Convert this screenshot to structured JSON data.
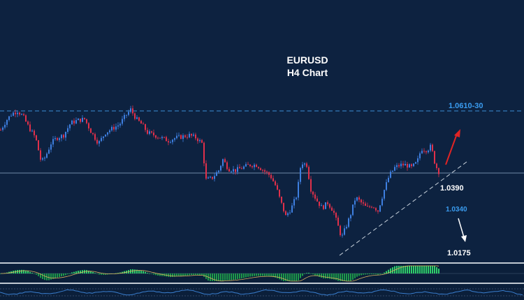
{
  "chart_data": {
    "type": "candlestick",
    "title": "EURUSD",
    "subtitle": "H4 Chart",
    "annotations": {
      "resistance": {
        "label": "1.0610-30",
        "value": 1.062
      },
      "current": {
        "label": "1.0390",
        "value": 1.039
      },
      "alt_trigger": {
        "label": "1.0340",
        "value": 1.034
      },
      "downside_target": {
        "label": "1.0175",
        "value": 1.0175
      }
    },
    "price_path": [
      [
        0,
        1.055
      ],
      [
        8,
        1.0585
      ],
      [
        16,
        1.061
      ],
      [
        24,
        1.062
      ],
      [
        32,
        1.06
      ],
      [
        40,
        1.056
      ],
      [
        50,
        1.052
      ],
      [
        58,
        1.043
      ],
      [
        64,
        1.045
      ],
      [
        72,
        1.05
      ],
      [
        80,
        1.052
      ],
      [
        90,
        1.053
      ],
      [
        100,
        1.0575
      ],
      [
        110,
        1.0585
      ],
      [
        120,
        1.059
      ],
      [
        130,
        1.054
      ],
      [
        140,
        1.05
      ],
      [
        150,
        1.054
      ],
      [
        160,
        1.0555
      ],
      [
        170,
        1.057
      ],
      [
        178,
        1.06
      ],
      [
        186,
        1.0625
      ],
      [
        194,
        1.059
      ],
      [
        202,
        1.057
      ],
      [
        210,
        1.054
      ],
      [
        220,
        1.053
      ],
      [
        230,
        1.052
      ],
      [
        240,
        1.051
      ],
      [
        250,
        1.052
      ],
      [
        260,
        1.0525
      ],
      [
        270,
        1.053
      ],
      [
        280,
        1.052
      ],
      [
        288,
        1.05
      ],
      [
        294,
        1.0365
      ],
      [
        302,
        1.037
      ],
      [
        312,
        1.04
      ],
      [
        318,
        1.044
      ],
      [
        326,
        1.0405
      ],
      [
        336,
        1.04
      ],
      [
        346,
        1.041
      ],
      [
        356,
        1.042
      ],
      [
        366,
        1.042
      ],
      [
        376,
        1.04
      ],
      [
        386,
        1.038
      ],
      [
        394,
        1.034
      ],
      [
        400,
        1.029
      ],
      [
        408,
        1.023
      ],
      [
        416,
        1.026
      ],
      [
        424,
        1.031
      ],
      [
        430,
        1.043
      ],
      [
        438,
        1.042
      ],
      [
        444,
        1.033
      ],
      [
        452,
        1.029
      ],
      [
        460,
        1.026
      ],
      [
        468,
        1.028
      ],
      [
        476,
        1.025
      ],
      [
        482,
        1.02
      ],
      [
        488,
        1.015
      ],
      [
        494,
        1.019
      ],
      [
        500,
        1.023
      ],
      [
        508,
        1.03
      ],
      [
        516,
        1.028
      ],
      [
        524,
        1.026
      ],
      [
        532,
        1.027
      ],
      [
        540,
        1.025
      ],
      [
        548,
        1.032
      ],
      [
        556,
        1.038
      ],
      [
        564,
        1.041
      ],
      [
        572,
        1.042
      ],
      [
        580,
        1.042
      ],
      [
        588,
        1.041
      ],
      [
        596,
        1.043
      ],
      [
        602,
        1.048
      ],
      [
        610,
        1.0475
      ],
      [
        616,
        1.049
      ],
      [
        622,
        1.042
      ],
      [
        628,
        1.039
      ]
    ]
  }
}
